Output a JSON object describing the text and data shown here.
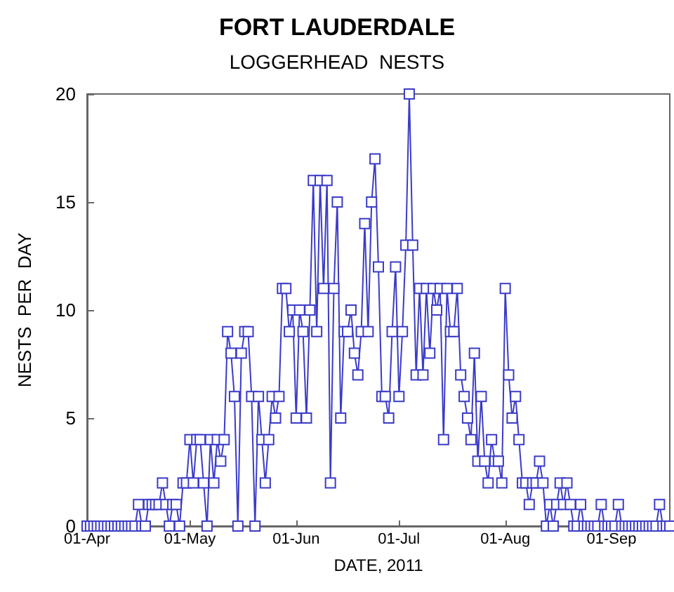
{
  "chart_data": {
    "type": "line",
    "title": "FORT LAUDERDALE",
    "subtitle": "LOGGERHEAD  NESTS",
    "xlabel": "DATE, 2011",
    "ylabel": "NESTS  PER  DAY",
    "x": [
      "2011-04-01",
      "2011-04-02",
      "2011-04-03",
      "2011-04-04",
      "2011-04-05",
      "2011-04-06",
      "2011-04-07",
      "2011-04-08",
      "2011-04-09",
      "2011-04-10",
      "2011-04-11",
      "2011-04-12",
      "2011-04-13",
      "2011-04-14",
      "2011-04-15",
      "2011-04-16",
      "2011-04-17",
      "2011-04-18",
      "2011-04-19",
      "2011-04-20",
      "2011-04-21",
      "2011-04-22",
      "2011-04-23",
      "2011-04-24",
      "2011-04-25",
      "2011-04-26",
      "2011-04-27",
      "2011-04-28",
      "2011-04-29",
      "2011-04-30",
      "2011-05-01",
      "2011-05-02",
      "2011-05-03",
      "2011-05-04",
      "2011-05-05",
      "2011-05-06",
      "2011-05-07",
      "2011-05-08",
      "2011-05-09",
      "2011-05-10",
      "2011-05-11",
      "2011-05-12",
      "2011-05-13",
      "2011-05-14",
      "2011-05-15",
      "2011-05-16",
      "2011-05-17",
      "2011-05-18",
      "2011-05-19",
      "2011-05-20",
      "2011-05-21",
      "2011-05-22",
      "2011-05-23",
      "2011-05-24",
      "2011-05-25",
      "2011-05-26",
      "2011-05-27",
      "2011-05-28",
      "2011-05-29",
      "2011-05-30",
      "2011-05-31",
      "2011-06-01",
      "2011-06-02",
      "2011-06-03",
      "2011-06-04",
      "2011-06-05",
      "2011-06-06",
      "2011-06-07",
      "2011-06-08",
      "2011-06-09",
      "2011-06-10",
      "2011-06-11",
      "2011-06-12",
      "2011-06-13",
      "2011-06-14",
      "2011-06-15",
      "2011-06-16",
      "2011-06-17",
      "2011-06-18",
      "2011-06-19",
      "2011-06-20",
      "2011-06-21",
      "2011-06-22",
      "2011-06-23",
      "2011-06-24",
      "2011-06-25",
      "2011-06-26",
      "2011-06-27",
      "2011-06-28",
      "2011-06-29",
      "2011-06-30",
      "2011-07-01",
      "2011-07-02",
      "2011-07-03",
      "2011-07-04",
      "2011-07-05",
      "2011-07-06",
      "2011-07-07",
      "2011-07-08",
      "2011-07-09",
      "2011-07-10",
      "2011-07-11",
      "2011-07-12",
      "2011-07-13",
      "2011-07-14",
      "2011-07-15",
      "2011-07-16",
      "2011-07-17",
      "2011-07-18",
      "2011-07-19",
      "2011-07-20",
      "2011-07-21",
      "2011-07-22",
      "2011-07-23",
      "2011-07-24",
      "2011-07-25",
      "2011-07-26",
      "2011-07-27",
      "2011-07-28",
      "2011-07-29",
      "2011-07-30",
      "2011-07-31",
      "2011-08-01",
      "2011-08-02",
      "2011-08-03",
      "2011-08-04",
      "2011-08-05",
      "2011-08-06",
      "2011-08-07",
      "2011-08-08",
      "2011-08-09",
      "2011-08-10",
      "2011-08-11",
      "2011-08-12",
      "2011-08-13",
      "2011-08-14",
      "2011-08-15",
      "2011-08-16",
      "2011-08-17",
      "2011-08-18",
      "2011-08-19",
      "2011-08-20",
      "2011-08-21",
      "2011-08-22",
      "2011-08-23",
      "2011-08-24",
      "2011-08-25",
      "2011-08-26",
      "2011-08-27",
      "2011-08-28",
      "2011-08-29",
      "2011-08-30",
      "2011-08-31",
      "2011-09-01",
      "2011-09-02",
      "2011-09-03",
      "2011-09-04",
      "2011-09-05",
      "2011-09-06",
      "2011-09-07",
      "2011-09-08",
      "2011-09-09",
      "2011-09-10",
      "2011-09-11",
      "2011-09-12",
      "2011-09-13",
      "2011-09-14",
      "2011-09-15",
      "2011-09-16",
      "2011-09-17",
      "2011-09-18"
    ],
    "series": [
      {
        "color": "#3b3bc8",
        "values": [
          0,
          0,
          0,
          0,
          0,
          0,
          0,
          0,
          0,
          0,
          0,
          0,
          0,
          0,
          0,
          1,
          0,
          0,
          1,
          1,
          1,
          1,
          2,
          1,
          0,
          1,
          1,
          0,
          2,
          2,
          4,
          2,
          4,
          4,
          2,
          0,
          4,
          2,
          4,
          3,
          4,
          9,
          8,
          6,
          0,
          8,
          9,
          9,
          6,
          0,
          6,
          4,
          2,
          4,
          6,
          5,
          6,
          11,
          11,
          9,
          10,
          5,
          10,
          9,
          5,
          10,
          16,
          9,
          16,
          11,
          16,
          2,
          11,
          15,
          5,
          9,
          9,
          10,
          8,
          7,
          9,
          14,
          9,
          15,
          17,
          12,
          6,
          6,
          5,
          9,
          12,
          6,
          9,
          13,
          20,
          13,
          7,
          11,
          7,
          11,
          8,
          11,
          10,
          11,
          4,
          11,
          9,
          9,
          11,
          7,
          6,
          5,
          4,
          8,
          3,
          6,
          3,
          2,
          4,
          3,
          3,
          2,
          11,
          7,
          5,
          6,
          4,
          2,
          2,
          1,
          2,
          2,
          3,
          2,
          0,
          1,
          0,
          1,
          2,
          1,
          2,
          1,
          0,
          0,
          1,
          0,
          0,
          0,
          0,
          0,
          1,
          0,
          0,
          0,
          0,
          1,
          0,
          0,
          0,
          0,
          0,
          0,
          0,
          0,
          0,
          0,
          0,
          1,
          0,
          0,
          0
        ]
      }
    ],
    "xlim": [
      "2011-04-01",
      "2011-09-18"
    ],
    "xticks": [
      {
        "value": "2011-04-01",
        "label": "01-Apr"
      },
      {
        "value": "2011-05-01",
        "label": "01-May"
      },
      {
        "value": "2011-06-01",
        "label": "01-Jun"
      },
      {
        "value": "2011-07-01",
        "label": "01-Jul"
      },
      {
        "value": "2011-08-01",
        "label": "01-Aug"
      },
      {
        "value": "2011-09-01",
        "label": "01-Sep"
      }
    ],
    "ylim": [
      0,
      20
    ],
    "yticks": [
      0,
      5,
      10,
      15,
      20
    ],
    "grid": false,
    "marker": "square",
    "line_style": "solid"
  }
}
